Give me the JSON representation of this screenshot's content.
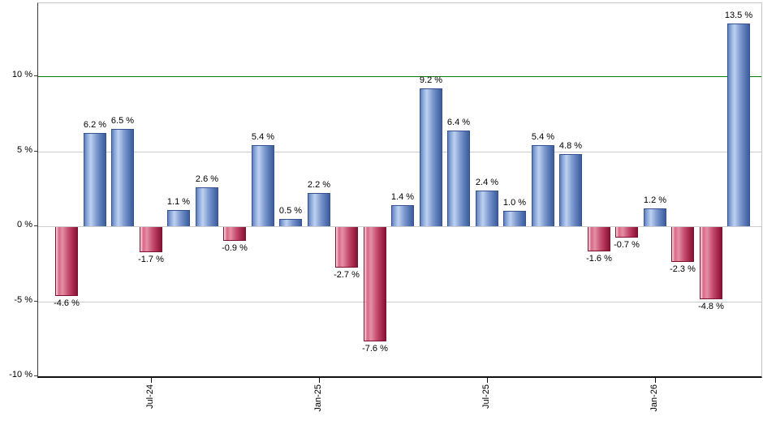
{
  "chart_data": {
    "type": "bar",
    "title": "",
    "xlabel": "",
    "ylabel": "",
    "unit_suffix": " %",
    "values": [
      -4.6,
      6.2,
      6.5,
      -1.7,
      1.1,
      2.6,
      -0.9,
      5.4,
      0.5,
      2.2,
      -2.7,
      -7.6,
      1.4,
      9.2,
      6.4,
      2.4,
      1.0,
      5.4,
      4.8,
      -1.6,
      -0.7,
      1.2,
      -2.3,
      -4.8,
      13.5
    ],
    "value_labels": [
      "-4.6 %",
      "6.2 %",
      "6.5 %",
      "-1.7 %",
      "1.1 %",
      "2.6 %",
      "-0.9 %",
      "5.4 %",
      "0.5 %",
      "2.2 %",
      "-2.7 %",
      "-7.6 %",
      "1.4 %",
      "9.2 %",
      "6.4 %",
      "2.4 %",
      "1.0 %",
      "5.4 %",
      "4.8 %",
      "-1.6 %",
      "-0.7 %",
      "1.2 %",
      "-2.3 %",
      "-4.8 %",
      "13.5 %"
    ],
    "x_ticks": [
      {
        "label": "Jul-24",
        "bar_index": 3
      },
      {
        "label": "Jan-25",
        "bar_index": 9
      },
      {
        "label": "Jul-25",
        "bar_index": 15
      },
      {
        "label": "Jan-26",
        "bar_index": 21
      }
    ],
    "y_ticks": [
      {
        "label": "10 %",
        "value": 10
      },
      {
        "label": "5 %",
        "value": 5
      },
      {
        "label": "0 %",
        "value": 0
      },
      {
        "label": "-5 %",
        "value": -5
      },
      {
        "label": "-10 %",
        "value": -10
      }
    ],
    "ylim": [
      -10,
      14.9
    ],
    "grid": true,
    "legend": false,
    "threshold_line": {
      "value": 10,
      "color": "#007a00"
    },
    "colors": {
      "positive_bar": "#6688c3",
      "negative_bar": "#c22d55",
      "gridline": "#cccccc",
      "axis": "#101010",
      "background": "#ffffff"
    }
  }
}
